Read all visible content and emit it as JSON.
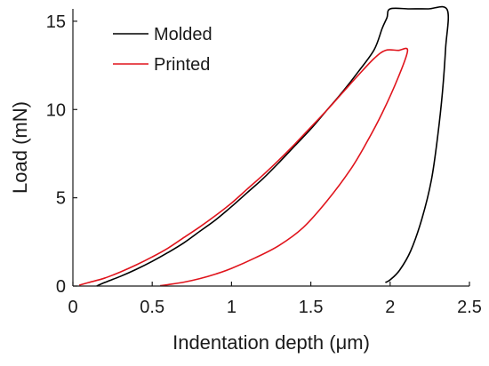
{
  "chart_data": {
    "type": "line",
    "title": "",
    "xlabel": "Indentation depth (μm)",
    "ylabel": "Load (mN)",
    "xlim": [
      0,
      2.5
    ],
    "ylim": [
      0,
      15.7
    ],
    "xticks": [
      0,
      0.5,
      1,
      1.5,
      2,
      2.5
    ],
    "xtick_labels": [
      "0",
      "0.5",
      "1",
      "1.5",
      "2",
      "2.5"
    ],
    "yticks": [
      0,
      5,
      10,
      15
    ],
    "ytick_labels": [
      "0",
      "5",
      "10",
      "15"
    ],
    "grid": false,
    "legend_position": "top-left",
    "series": [
      {
        "name": "Molded",
        "color": "#000000",
        "points": [
          [
            0.15,
            0
          ],
          [
            0.2,
            0.2
          ],
          [
            0.3,
            0.55
          ],
          [
            0.4,
            0.95
          ],
          [
            0.5,
            1.4
          ],
          [
            0.6,
            1.9
          ],
          [
            0.7,
            2.45
          ],
          [
            0.8,
            3.1
          ],
          [
            0.9,
            3.75
          ],
          [
            1.0,
            4.5
          ],
          [
            1.1,
            5.3
          ],
          [
            1.2,
            6.1
          ],
          [
            1.3,
            7.0
          ],
          [
            1.4,
            7.95
          ],
          [
            1.5,
            8.9
          ],
          [
            1.6,
            9.95
          ],
          [
            1.7,
            11.0
          ],
          [
            1.8,
            12.15
          ],
          [
            1.9,
            13.4
          ],
          [
            1.95,
            14.6
          ],
          [
            1.98,
            15.2
          ],
          [
            2.0,
            15.7
          ],
          [
            2.12,
            15.7
          ],
          [
            2.24,
            15.7
          ],
          [
            2.36,
            15.65
          ],
          [
            2.35,
            13.5
          ],
          [
            2.33,
            11.0
          ],
          [
            2.3,
            8.5
          ],
          [
            2.26,
            6.0
          ],
          [
            2.2,
            3.8
          ],
          [
            2.13,
            2.0
          ],
          [
            2.06,
            0.9
          ],
          [
            2.0,
            0.35
          ],
          [
            1.97,
            0.2
          ]
        ]
      },
      {
        "name": "Printed",
        "color": "#e0141c",
        "points": [
          [
            0.04,
            0.05
          ],
          [
            0.1,
            0.2
          ],
          [
            0.2,
            0.45
          ],
          [
            0.3,
            0.8
          ],
          [
            0.4,
            1.2
          ],
          [
            0.5,
            1.65
          ],
          [
            0.6,
            2.15
          ],
          [
            0.7,
            2.75
          ],
          [
            0.8,
            3.35
          ],
          [
            0.9,
            4.0
          ],
          [
            1.0,
            4.7
          ],
          [
            1.1,
            5.5
          ],
          [
            1.2,
            6.3
          ],
          [
            1.3,
            7.15
          ],
          [
            1.4,
            8.05
          ],
          [
            1.5,
            9.0
          ],
          [
            1.6,
            9.95
          ],
          [
            1.7,
            10.95
          ],
          [
            1.8,
            11.95
          ],
          [
            1.9,
            12.9
          ],
          [
            1.97,
            13.35
          ],
          [
            2.05,
            13.35
          ],
          [
            2.11,
            13.35
          ],
          [
            2.05,
            11.8
          ],
          [
            1.95,
            9.8
          ],
          [
            1.85,
            8.1
          ],
          [
            1.75,
            6.6
          ],
          [
            1.6,
            4.8
          ],
          [
            1.45,
            3.3
          ],
          [
            1.3,
            2.3
          ],
          [
            1.15,
            1.6
          ],
          [
            1.0,
            1.0
          ],
          [
            0.9,
            0.68
          ],
          [
            0.8,
            0.42
          ],
          [
            0.7,
            0.22
          ],
          [
            0.6,
            0.08
          ],
          [
            0.55,
            0.02
          ]
        ]
      }
    ]
  }
}
